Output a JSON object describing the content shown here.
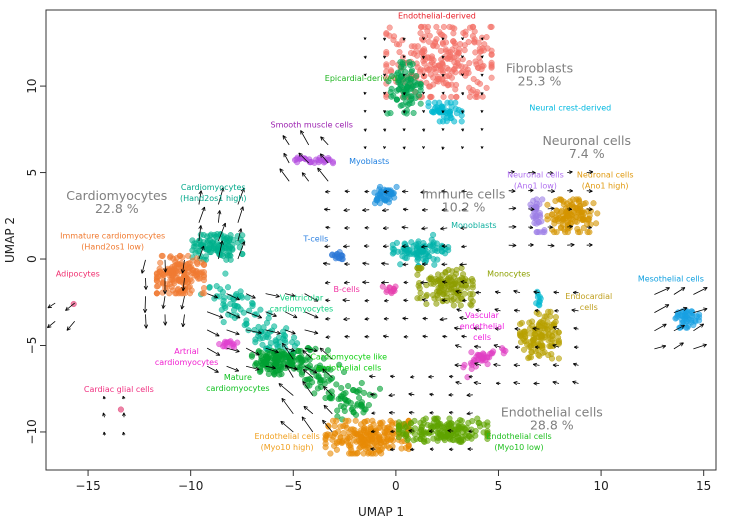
{
  "chart_data": {
    "type": "scatter",
    "title": "",
    "xlabel": "UMAP 1",
    "ylabel": "UMAP 2",
    "xlim": [
      -17.05,
      15.6
    ],
    "ylim": [
      -12.2,
      14.4
    ],
    "xticks": [
      -15,
      -10,
      -5,
      0,
      5,
      10,
      15
    ],
    "yticks": [
      -10,
      -5,
      0,
      5,
      10
    ],
    "grid": false,
    "legend": "none",
    "overlay": "velocity arrows",
    "clusters": [
      {
        "name": "Endothelial-derived",
        "color": "#f36f66",
        "center": [
          2.1,
          11.4
        ],
        "spread": [
          1.9,
          1.5
        ],
        "n": 260
      },
      {
        "name": "Epicardial-derived",
        "color": "#00a551",
        "center": [
          0.4,
          9.9
        ],
        "spread": [
          0.6,
          1.1
        ],
        "n": 90
      },
      {
        "name": "Neural crest-derived",
        "color": "#00b8d0",
        "center": [
          2.4,
          8.5
        ],
        "spread": [
          0.6,
          0.4
        ],
        "n": 50
      },
      {
        "name": "Smooth muscle cells",
        "color": "#b44fe0",
        "center": [
          -4.0,
          5.7
        ],
        "spread": [
          0.8,
          0.12
        ],
        "n": 30
      },
      {
        "name": "Myoblasts",
        "color": "#1b8fdc",
        "center": [
          -0.5,
          3.7
        ],
        "spread": [
          0.4,
          0.35
        ],
        "n": 45
      },
      {
        "name": "Neuronal cells (Ano1 low)",
        "color": "#9d7fe6",
        "center": [
          6.9,
          2.5
        ],
        "spread": [
          0.25,
          0.7
        ],
        "n": 35
      },
      {
        "name": "Neuronal cells (Ano1 high)",
        "color": "#d49400",
        "center": [
          8.6,
          2.5
        ],
        "spread": [
          0.9,
          0.7
        ],
        "n": 120
      },
      {
        "name": "T-cells",
        "color": "#2a76d6",
        "center": [
          -2.8,
          0.2
        ],
        "spread": [
          0.25,
          0.15
        ],
        "n": 15
      },
      {
        "name": "Monoblasts",
        "color": "#00b2aa",
        "center": [
          1.2,
          0.5
        ],
        "spread": [
          1.0,
          0.35
        ],
        "n": 70
      },
      {
        "name": "Monocytes",
        "color": "#8d9d00",
        "center": [
          2.4,
          -1.6
        ],
        "spread": [
          1.0,
          0.8
        ],
        "n": 130
      },
      {
        "name": "B-cells",
        "color": "#e63fae",
        "center": [
          -0.3,
          -1.8
        ],
        "spread": [
          0.25,
          0.15
        ],
        "n": 12
      },
      {
        "name": "Cardiomyocytes (Hand2os1 high)",
        "color": "#00b08c",
        "center": [
          -8.7,
          0.7
        ],
        "spread": [
          0.9,
          0.55
        ],
        "n": 110
      },
      {
        "name": "Immature cardiomyocytes (Hand2os1 low)",
        "color": "#f07a32",
        "center": [
          -10.5,
          -0.9
        ],
        "spread": [
          0.85,
          0.8
        ],
        "n": 170
      },
      {
        "name": "Artrial cardiomyocytes",
        "color": "#e040cf",
        "center": [
          -8.2,
          -4.9
        ],
        "spread": [
          0.35,
          0.15
        ],
        "n": 15
      },
      {
        "name": "Mature cardiomyocytes",
        "color": "#00a032",
        "center": [
          -5.8,
          -6.0
        ],
        "spread": [
          0.9,
          0.5
        ],
        "n": 120
      },
      {
        "name": "Endothelial cells (Myo10 high)",
        "color": "#e88a05",
        "center": [
          -1.4,
          -10.3
        ],
        "spread": [
          1.5,
          0.7
        ],
        "n": 220
      },
      {
        "name": "Endothelial cells (Myo10 low)",
        "color": "#5fa300",
        "center": [
          2.3,
          -9.9
        ],
        "spread": [
          1.6,
          0.5
        ],
        "n": 180
      },
      {
        "name": "Vascular endothelial cells",
        "color": "#e03fc3",
        "center": [
          4.2,
          -5.7
        ],
        "spread": [
          0.6,
          0.25
        ],
        "n": 20
      },
      {
        "name": "Endocardial cells",
        "color": "#b8a000",
        "center": [
          7.0,
          -4.4
        ],
        "spread": [
          0.7,
          1.0
        ],
        "n": 130
      },
      {
        "name": "Endocardial (cyan subcluster)",
        "color": "#00b8d0",
        "center": [
          7.0,
          -2.3
        ],
        "spread": [
          0.15,
          0.3
        ],
        "n": 10
      },
      {
        "name": "Mesothelial cells",
        "color": "#18a0e2",
        "center": [
          14.1,
          -3.5
        ],
        "spread": [
          0.5,
          0.35
        ],
        "n": 45
      },
      {
        "name": "Adipocytes",
        "color": "#e0306a",
        "center": [
          -15.7,
          -2.6
        ],
        "spread": [
          0.05,
          0.05
        ],
        "n": 1
      },
      {
        "name": "Cardiac glial cells",
        "color": "#e0306a",
        "center": [
          -13.4,
          -8.7
        ],
        "spread": [
          0.05,
          0.05
        ],
        "n": 1
      }
    ],
    "streams": [
      {
        "name": "Ventricular cardiomyocytes",
        "color": "#00b596",
        "from": [
          -9.0,
          -1.5
        ],
        "to": [
          -5.0,
          -5.5
        ],
        "width": 0.45,
        "n": 110
      },
      {
        "name": "Cardiomyocyte like endothelial cells",
        "color": "#00a032",
        "from": [
          -5.0,
          -5.5
        ],
        "to": [
          -1.5,
          -8.8
        ],
        "width": 0.5,
        "n": 120
      },
      {
        "name": "Vascular endothelial stream",
        "color": "#e03fc3",
        "from": [
          3.2,
          -6.4
        ],
        "to": [
          5.4,
          -5.1
        ],
        "width": 0.15,
        "n": 20
      },
      {
        "name": "Monoblast-monocyte",
        "color": "#00b2aa",
        "from": [
          0.8,
          1.0
        ],
        "to": [
          1.5,
          -0.8
        ],
        "width": 0.4,
        "n": 25
      }
    ],
    "arrow_fields": [
      {
        "x": [
          -1.5,
          4.5
        ],
        "y": [
          6.5,
          13.0
        ],
        "angle": -90,
        "length": 0.12
      },
      {
        "x": [
          -5.2,
          -2.6
        ],
        "y": [
          4.5,
          7.0
        ],
        "angle": 125,
        "length": 0.75
      },
      {
        "x": [
          -3.2,
          4.3
        ],
        "y": [
          -4.5,
          4.2
        ],
        "angle": 180,
        "length": 0.3
      },
      {
        "x": [
          5.5,
          10.2
        ],
        "y": [
          0.8,
          5.0
        ],
        "angle": 0,
        "length": 0.3
      },
      {
        "x": [
          -9.6,
          -7.0
        ],
        "y": [
          0.0,
          3.3
        ],
        "angle": 75,
        "length": 0.8
      },
      {
        "x": [
          -12.2,
          -10.2
        ],
        "y": [
          -3.2,
          0.2
        ],
        "angle": -95,
        "length": 0.7
      },
      {
        "x": [
          -9.2,
          -4.2
        ],
        "y": [
          -6.2,
          -2.0
        ],
        "angle": -20,
        "length": 0.7
      },
      {
        "x": [
          -5.0,
          -2.2
        ],
        "y": [
          -10.0,
          -5.0
        ],
        "angle": 130,
        "length": 0.8
      },
      {
        "x": [
          -16.6,
          -15.0
        ],
        "y": [
          -3.6,
          -1.6
        ],
        "angle": 220,
        "length": 0.6
      },
      {
        "x": [
          -14.2,
          -12.8
        ],
        "y": [
          -10.2,
          -7.6
        ],
        "angle": 100,
        "length": 0.2
      },
      {
        "x": [
          12.6,
          15.0
        ],
        "y": [
          -5.2,
          -1.6
        ],
        "angle": 25,
        "length": 0.7
      },
      {
        "x": [
          -1.0,
          4.6
        ],
        "y": [
          -11.0,
          -6.6
        ],
        "angle": 180,
        "length": 0.25
      },
      {
        "x": [
          3.2,
          9.2
        ],
        "y": [
          -7.2,
          -1.0
        ],
        "angle": 170,
        "length": 0.3
      }
    ],
    "annotations": [
      {
        "lines": [
          "Endothelial-derived"
        ],
        "x": 2.0,
        "y": 13.9,
        "color": "#e8202a",
        "size": "small"
      },
      {
        "lines": [
          "Epicardial-derived"
        ],
        "x": -1.7,
        "y": 10.3,
        "color": "#1fb520",
        "size": "small"
      },
      {
        "lines": [
          "Fibroblasts",
          "25.3 %"
        ],
        "x": 7.0,
        "y": 10.8,
        "color": "#808080",
        "size": "large"
      },
      {
        "lines": [
          "Neural crest-derived"
        ],
        "x": 8.5,
        "y": 8.6,
        "color": "#00b8e0",
        "size": "small"
      },
      {
        "lines": [
          "Smooth muscle cells"
        ],
        "x": -4.1,
        "y": 7.6,
        "color": "#9b20b0",
        "size": "small"
      },
      {
        "lines": [
          "Neuronal cells",
          "7.4 %"
        ],
        "x": 9.3,
        "y": 6.6,
        "color": "#808080",
        "size": "large"
      },
      {
        "lines": [
          "Myoblasts"
        ],
        "x": -1.3,
        "y": 5.5,
        "color": "#1e7fe0",
        "size": "small"
      },
      {
        "lines": [
          "Neuronal cells",
          "(Ano1 low)"
        ],
        "x": 6.8,
        "y": 4.7,
        "color": "#b070f0",
        "size": "small"
      },
      {
        "lines": [
          "Neuronal cells",
          "(Ano1 high)"
        ],
        "x": 10.2,
        "y": 4.7,
        "color": "#e09a10",
        "size": "small"
      },
      {
        "lines": [
          "Cardiomyocytes",
          "22.8 %"
        ],
        "x": -13.6,
        "y": 3.4,
        "color": "#808080",
        "size": "large"
      },
      {
        "lines": [
          "Cardiomyocytes",
          "(Hand2os1 high)"
        ],
        "x": -8.9,
        "y": 4.0,
        "color": "#00a88a",
        "size": "small"
      },
      {
        "lines": [
          "Immune cells",
          "10.2 %"
        ],
        "x": 3.3,
        "y": 3.5,
        "color": "#808080",
        "size": "large"
      },
      {
        "lines": [
          "Monoblasts"
        ],
        "x": 3.8,
        "y": 1.8,
        "color": "#10b0a0",
        "size": "small"
      },
      {
        "lines": [
          "Immature cardiomyocytes",
          "(Hand2os1 low)"
        ],
        "x": -13.8,
        "y": 1.2,
        "color": "#f07a30",
        "size": "small"
      },
      {
        "lines": [
          "T-cells"
        ],
        "x": -3.9,
        "y": 1.0,
        "color": "#2a7fe0",
        "size": "small"
      },
      {
        "lines": [
          "Adipocytes"
        ],
        "x": -15.5,
        "y": -1.0,
        "color": "#f03070",
        "size": "small"
      },
      {
        "lines": [
          "Monocytes"
        ],
        "x": 5.5,
        "y": -1.0,
        "color": "#8da000",
        "size": "small"
      },
      {
        "lines": [
          "B-cells"
        ],
        "x": -2.4,
        "y": -1.9,
        "color": "#f030a0",
        "size": "small"
      },
      {
        "lines": [
          "Mesothelial cells"
        ],
        "x": 13.4,
        "y": -1.3,
        "color": "#10a0e0",
        "size": "small"
      },
      {
        "lines": [
          "Endocardial",
          "cells"
        ],
        "x": 9.4,
        "y": -2.3,
        "color": "#c0a020",
        "size": "small"
      },
      {
        "lines": [
          "Ventricular",
          "cardiomyocytes"
        ],
        "x": -4.6,
        "y": -2.4,
        "color": "#10d080",
        "size": "small"
      },
      {
        "lines": [
          "Vascular",
          "endothelial",
          "cells"
        ],
        "x": 4.2,
        "y": -3.4,
        "color": "#f020e0",
        "size": "small"
      },
      {
        "lines": [
          "Cardiomyocyte like",
          "endothelial cells"
        ],
        "x": -2.3,
        "y": -5.8,
        "color": "#10d010",
        "size": "small"
      },
      {
        "lines": [
          "Artrial",
          "cardiomyocytes"
        ],
        "x": -10.2,
        "y": -5.5,
        "color": "#f020d0",
        "size": "small"
      },
      {
        "lines": [
          "Mature",
          "cardiomyocytes"
        ],
        "x": -7.7,
        "y": -7.0,
        "color": "#10c020",
        "size": "small"
      },
      {
        "lines": [
          "Cardiac glial cells"
        ],
        "x": -13.5,
        "y": -7.7,
        "color": "#f03080",
        "size": "small"
      },
      {
        "lines": [
          "Endothelial cells",
          "28.8 %"
        ],
        "x": 7.6,
        "y": -9.1,
        "color": "#808080",
        "size": "large"
      },
      {
        "lines": [
          "Endothelial cells",
          "(Myo10 high)"
        ],
        "x": -5.3,
        "y": -10.4,
        "color": "#f0a020",
        "size": "small"
      },
      {
        "lines": [
          "Endothelial cells",
          "(Myo10 low)"
        ],
        "x": 6.0,
        "y": -10.4,
        "color": "#20c020",
        "size": "small"
      }
    ]
  }
}
